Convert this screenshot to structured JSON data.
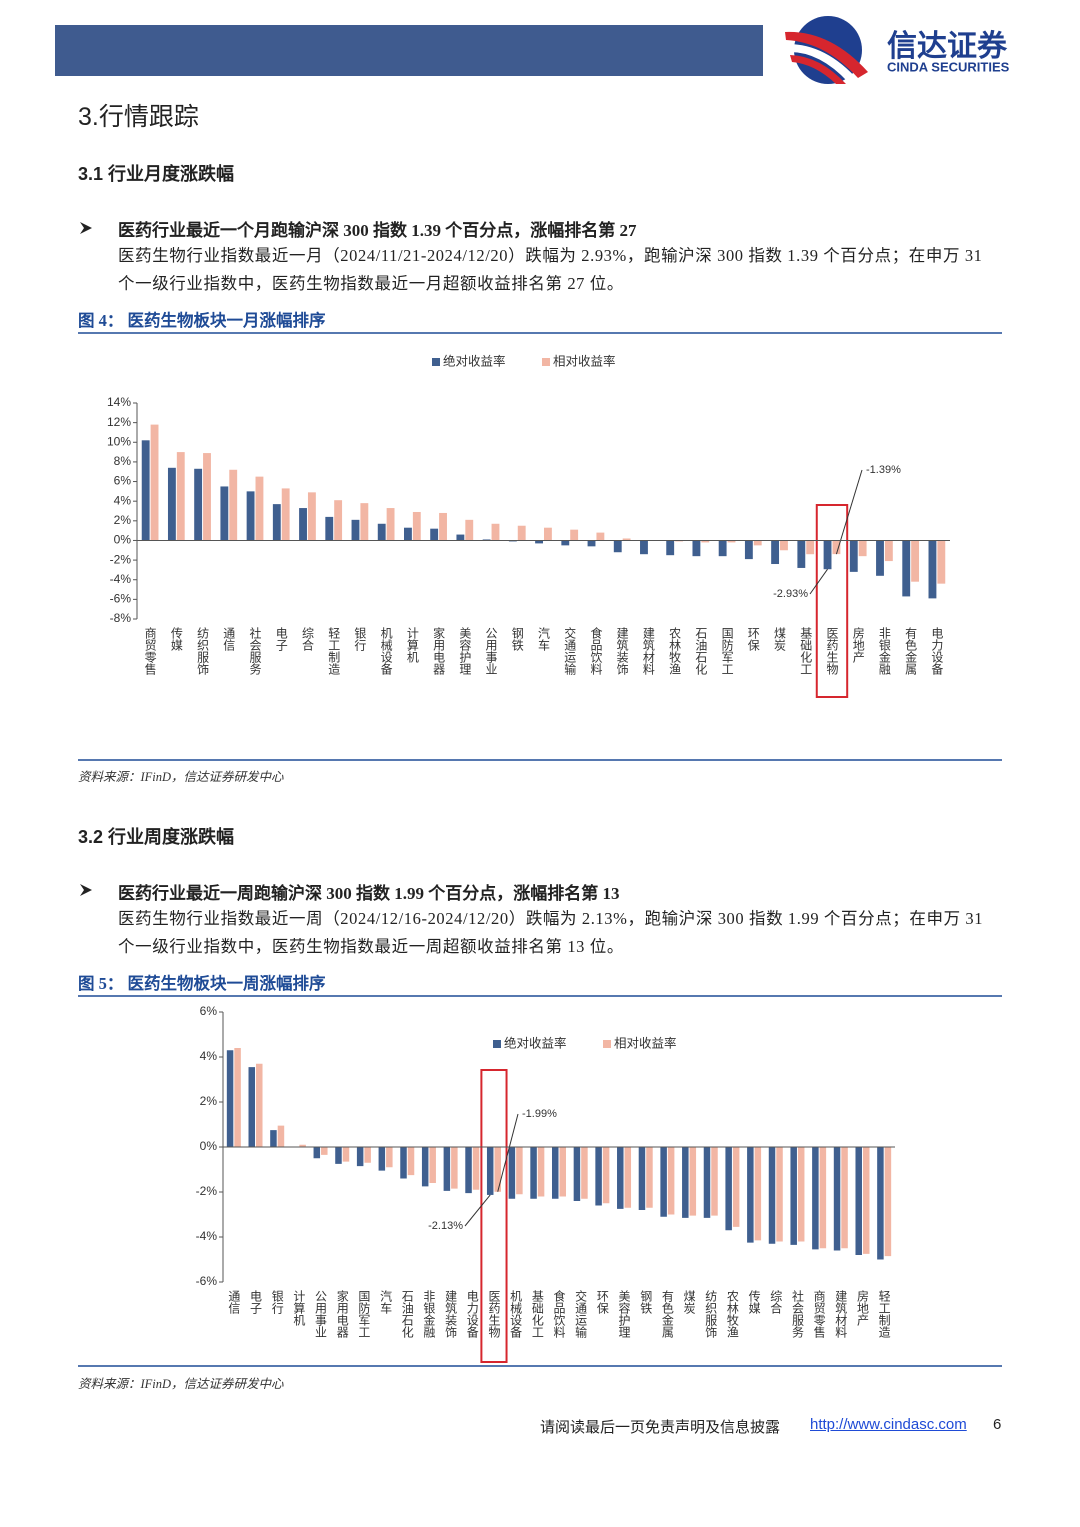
{
  "header": {
    "logo_cn": "信达证券",
    "logo_en": "CINDA SECURITIES"
  },
  "section_title": "3.行情跟踪",
  "sections": [
    {
      "heading": "3.1 行业月度涨跌幅",
      "bullet": "医药行业最近一个月跑输沪深 300 指数 1.39 个百分点，涨幅排名第 27",
      "paragraph": "医药生物行业指数最近一月（2024/11/21-2024/12/20）跌幅为 2.93%，跑输沪深 300 指数 1.39 个百分点；在申万 31 个一级行业指数中，医药生物指数最近一月超额收益排名第 27 位。",
      "figure_caption": "图 4：  医药生物板块一月涨幅排序",
      "source": "资料来源：IFinD，信达证券研发中心"
    },
    {
      "heading": "3.2 行业周度涨跌幅",
      "bullet": "医药行业最近一周跑输沪深 300 指数 1.99 个百分点，涨幅排名第 13",
      "paragraph": "医药生物行业指数最近一周（2024/12/16-2024/12/20）跌幅为 2.13%，跑输沪深 300 指数 1.99 个百分点；在申万 31 个一级行业指数中，医药生物指数最近一周超额收益排名第 13 位。",
      "figure_caption": "图 5：  医药生物板块一周涨幅排序",
      "source": "资料来源：IFinD，信达证券研发中心"
    }
  ],
  "chart_data": [
    {
      "type": "bar",
      "categories": [
        "商贸零售",
        "传媒",
        "纺织服饰",
        "通信",
        "社会服务",
        "电子",
        "综合",
        "轻工制造",
        "银行",
        "机械设备",
        "计算机",
        "家用电器",
        "美容护理",
        "公用事业",
        "钢铁",
        "汽车",
        "交通运输",
        "食品饮料",
        "建筑装饰",
        "建筑材料",
        "农林牧渔",
        "石油石化",
        "国防军工",
        "环保",
        "煤炭",
        "基础化工",
        "医药生物",
        "房地产",
        "非银金融",
        "有色金属",
        "电力设备"
      ],
      "series": [
        {
          "name": "绝对收益率",
          "color": "#3f5f8f",
          "values": [
            10.2,
            7.4,
            7.3,
            5.5,
            5.0,
            3.7,
            3.3,
            2.4,
            2.1,
            1.7,
            1.3,
            1.2,
            0.6,
            0.1,
            -0.1,
            -0.3,
            -0.5,
            -0.6,
            -1.2,
            -1.4,
            -1.5,
            -1.6,
            -1.6,
            -1.9,
            -2.4,
            -2.8,
            -2.93,
            -3.2,
            -3.6,
            -5.7,
            -5.9
          ],
          "value_labels": [
            null,
            null,
            null,
            null,
            null,
            null,
            null,
            null,
            null,
            null,
            null,
            null,
            null,
            null,
            null,
            null,
            null,
            null,
            null,
            null,
            null,
            null,
            null,
            null,
            null,
            null,
            "-2.93%",
            null,
            null,
            null,
            null
          ]
        },
        {
          "name": "相对收益率",
          "color": "#f2b6a4",
          "values": [
            11.8,
            9.0,
            8.9,
            7.2,
            6.5,
            5.3,
            4.9,
            4.1,
            3.8,
            3.3,
            2.9,
            2.8,
            2.1,
            1.7,
            1.5,
            1.3,
            1.1,
            0.8,
            0.2,
            0.0,
            -0.1,
            -0.2,
            -0.2,
            -0.5,
            -1.0,
            -1.4,
            -1.39,
            -1.6,
            -2.1,
            -4.2,
            -4.4
          ],
          "value_labels": [
            null,
            null,
            null,
            null,
            null,
            null,
            null,
            null,
            null,
            null,
            null,
            null,
            null,
            null,
            null,
            null,
            null,
            null,
            null,
            null,
            null,
            null,
            null,
            null,
            null,
            null,
            "-1.39%",
            null,
            null,
            null,
            null
          ]
        }
      ],
      "ylim": [
        -8,
        14
      ],
      "yticks": [
        {
          "value": -8,
          "label": "-8%"
        },
        {
          "value": -6,
          "label": "-6%"
        },
        {
          "value": -4,
          "label": "-4%"
        },
        {
          "value": -2,
          "label": "-2%"
        },
        {
          "value": 0,
          "label": "0%"
        },
        {
          "value": 2,
          "label": "2%"
        },
        {
          "value": 4,
          "label": "4%"
        },
        {
          "value": 6,
          "label": "6%"
        },
        {
          "value": 8,
          "label": "8%"
        },
        {
          "value": 10,
          "label": "10%"
        },
        {
          "value": 12,
          "label": "12%"
        },
        {
          "value": 14,
          "label": "14%"
        }
      ],
      "highlight": 26,
      "legend": "top"
    },
    {
      "type": "bar",
      "categories": [
        "通信",
        "电子",
        "银行",
        "计算机",
        "公用事业",
        "家用电器",
        "国防军工",
        "汽车",
        "石油石化",
        "非银金融",
        "建筑装饰",
        "电力设备",
        "医药生物",
        "机械设备",
        "基础化工",
        "食品饮料",
        "交通运输",
        "环保",
        "美容护理",
        "钢铁",
        "有色金属",
        "煤炭",
        "纺织服饰",
        "农林牧渔",
        "传媒",
        "综合",
        "社会服务",
        "商贸零售",
        "建筑材料",
        "房地产",
        "轻工制造"
      ],
      "series": [
        {
          "name": "绝对收益率",
          "color": "#3f5f8f",
          "values": [
            4.3,
            3.55,
            0.75,
            0.0,
            -0.5,
            -0.75,
            -0.85,
            -1.05,
            -1.4,
            -1.75,
            -1.95,
            -2.05,
            -2.13,
            -2.3,
            -2.3,
            -2.3,
            -2.4,
            -2.6,
            -2.75,
            -2.8,
            -3.1,
            -3.15,
            -3.15,
            -3.7,
            -4.25,
            -4.3,
            -4.35,
            -4.55,
            -4.6,
            -4.8,
            -5.0
          ],
          "value_labels": [
            null,
            null,
            null,
            null,
            null,
            null,
            null,
            null,
            null,
            null,
            null,
            null,
            "-2.13%",
            null,
            null,
            null,
            null,
            null,
            null,
            null,
            null,
            null,
            null,
            null,
            null,
            null,
            null,
            null,
            null,
            null,
            null
          ]
        },
        {
          "name": "相对收益率",
          "color": "#f2b6a4",
          "values": [
            4.4,
            3.7,
            0.95,
            0.1,
            -0.35,
            -0.65,
            -0.7,
            -0.9,
            -1.25,
            -1.6,
            -1.85,
            -1.9,
            -1.99,
            -2.1,
            -2.2,
            -2.2,
            -2.3,
            -2.5,
            -2.7,
            -2.7,
            -3.0,
            -3.05,
            -3.05,
            -3.55,
            -4.15,
            -4.2,
            -4.2,
            -4.5,
            -4.5,
            -4.75,
            -4.85
          ],
          "value_labels": [
            null,
            null,
            null,
            null,
            null,
            null,
            null,
            null,
            null,
            null,
            null,
            null,
            "-1.99%",
            null,
            null,
            null,
            null,
            null,
            null,
            null,
            null,
            null,
            null,
            null,
            null,
            null,
            null,
            null,
            null,
            null,
            null
          ]
        }
      ],
      "ylim": [
        -6,
        6
      ],
      "yticks": [
        {
          "value": -6,
          "label": "-6%"
        },
        {
          "value": -4,
          "label": "-4%"
        },
        {
          "value": -2,
          "label": "-2%"
        },
        {
          "value": 0,
          "label": "0%"
        },
        {
          "value": 2,
          "label": "2%"
        },
        {
          "value": 4,
          "label": "4%"
        },
        {
          "value": 6,
          "label": "6%"
        }
      ],
      "highlight": 12,
      "legend": "top"
    }
  ],
  "footer": {
    "disclaimer": "请阅读最后一页免责声明及信息披露",
    "link": "http://www.cindasc.com",
    "page": "6"
  }
}
